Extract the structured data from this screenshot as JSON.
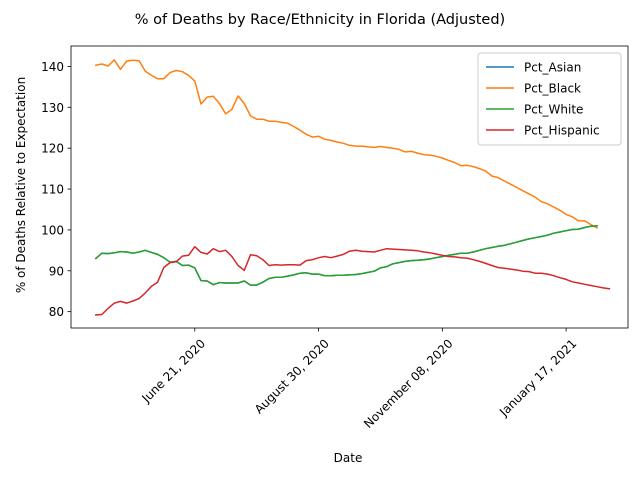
{
  "chart_data": {
    "type": "line",
    "title": "% of Deaths by Race/Ethnicity in Florida (Adjusted)",
    "xlabel": "Date",
    "ylabel": "% of Deaths Relative to Expectation",
    "x_start": "2020-04-26",
    "x_step_days": 3.5,
    "xlim": [
      "2020-04-12",
      "2021-02-21"
    ],
    "ylim": [
      76,
      145
    ],
    "x_ticks": [
      {
        "date": "2020-06-21",
        "label": "June 21, 2020"
      },
      {
        "date": "2020-08-30",
        "label": "August 30, 2020"
      },
      {
        "date": "2020-11-08",
        "label": "November 08, 2020"
      },
      {
        "date": "2021-01-17",
        "label": "January 17, 2021"
      }
    ],
    "y_ticks": [
      80,
      90,
      100,
      110,
      120,
      130,
      140
    ],
    "legend_position": "top-right",
    "grid": false,
    "series": [
      {
        "name": "Pct_Asian",
        "color": "#1f77b4",
        "values": [
          93.0,
          94.3,
          94.2,
          94.4,
          94.7,
          94.6,
          94.3,
          94.6,
          95.0,
          94.5,
          94.0,
          93.2,
          92.1,
          92.3,
          91.3,
          91.4,
          90.7,
          87.6,
          87.5,
          86.6,
          87.1,
          87.0,
          87.0,
          87.0,
          87.5,
          86.5,
          86.5,
          87.2,
          88.1,
          88.4,
          88.4,
          88.7,
          89.0,
          89.4,
          89.5,
          89.2,
          89.2,
          88.8,
          88.8,
          88.9,
          88.9,
          89.0,
          89.1,
          89.3,
          89.6,
          89.9,
          90.7,
          91.0,
          91.7,
          92.0,
          92.3,
          92.5,
          92.6,
          92.7,
          92.9,
          93.2,
          93.5,
          93.8,
          94.0,
          94.3,
          94.3,
          94.6,
          95.0,
          95.4,
          95.7,
          96.0,
          96.2,
          96.6,
          97.0,
          97.4,
          97.8,
          98.1,
          98.4,
          98.7,
          99.2,
          99.5,
          99.8,
          100.1,
          100.2,
          100.6,
          100.9,
          101.0
        ]
      },
      {
        "name": "Pct_Black",
        "color": "#ff7f0e",
        "values": [
          140.3,
          140.6,
          140.1,
          141.6,
          139.3,
          141.3,
          141.5,
          141.4,
          138.8,
          137.8,
          137.0,
          137.0,
          138.5,
          139.0,
          138.7,
          137.8,
          136.4,
          130.8,
          132.5,
          132.7,
          130.9,
          128.4,
          129.5,
          132.8,
          130.9,
          127.9,
          127.1,
          127.1,
          126.6,
          126.6,
          126.3,
          126.1,
          125.3,
          124.4,
          123.4,
          122.7,
          122.9,
          122.2,
          121.9,
          121.5,
          121.2,
          120.7,
          120.5,
          120.5,
          120.3,
          120.2,
          120.4,
          120.2,
          120.0,
          119.7,
          119.1,
          119.2,
          118.8,
          118.4,
          118.3,
          118.0,
          117.6,
          117.0,
          116.5,
          115.7,
          115.8,
          115.5,
          115.0,
          114.4,
          113.2,
          112.8,
          112.0,
          111.2,
          110.4,
          109.6,
          108.8,
          108.0,
          106.9,
          106.4,
          105.6,
          104.8,
          103.8,
          103.2,
          102.2,
          102.2,
          101.3,
          100.5
        ]
      },
      {
        "name": "Pct_White",
        "color": "#2ca02c",
        "values": [
          93.0,
          94.3,
          94.2,
          94.4,
          94.7,
          94.6,
          94.3,
          94.6,
          95.0,
          94.5,
          94.0,
          93.2,
          92.1,
          92.3,
          91.3,
          91.4,
          90.7,
          87.6,
          87.5,
          86.6,
          87.1,
          87.0,
          87.0,
          87.0,
          87.5,
          86.5,
          86.5,
          87.2,
          88.1,
          88.4,
          88.4,
          88.7,
          89.0,
          89.4,
          89.5,
          89.2,
          89.2,
          88.8,
          88.8,
          88.9,
          88.9,
          89.0,
          89.1,
          89.3,
          89.6,
          89.9,
          90.7,
          91.0,
          91.7,
          92.0,
          92.3,
          92.5,
          92.6,
          92.7,
          92.9,
          93.2,
          93.5,
          93.8,
          94.0,
          94.3,
          94.3,
          94.6,
          95.0,
          95.4,
          95.7,
          96.0,
          96.2,
          96.6,
          97.0,
          97.4,
          97.8,
          98.1,
          98.4,
          98.7,
          99.2,
          99.5,
          99.8,
          100.1,
          100.2,
          100.6,
          100.9,
          101.0
        ]
      },
      {
        "name": "Pct_Hispanic",
        "color": "#d62728",
        "values": [
          79.2,
          79.3,
          80.8,
          82.1,
          82.5,
          82.1,
          82.6,
          83.2,
          84.6,
          86.2,
          87.2,
          90.8,
          92.0,
          92.2,
          93.6,
          93.8,
          95.9,
          94.5,
          94.1,
          95.4,
          94.7,
          95.0,
          93.5,
          91.3,
          90.1,
          93.9,
          93.7,
          92.7,
          91.3,
          91.5,
          91.4,
          91.5,
          91.5,
          91.4,
          92.5,
          92.7,
          93.2,
          93.5,
          93.2,
          93.6,
          94.0,
          94.8,
          95.0,
          94.8,
          94.7,
          94.6,
          95.0,
          95.4,
          95.3,
          95.2,
          95.1,
          95.0,
          94.9,
          94.6,
          94.4,
          94.1,
          93.8,
          93.5,
          93.4,
          93.2,
          93.1,
          92.7,
          92.3,
          91.8,
          91.3,
          90.8,
          90.6,
          90.4,
          90.2,
          89.9,
          89.8,
          89.4,
          89.4,
          89.2,
          88.8,
          88.3,
          87.9,
          87.3,
          87.0,
          86.7,
          86.4,
          86.1,
          85.8,
          85.6
        ]
      }
    ]
  }
}
